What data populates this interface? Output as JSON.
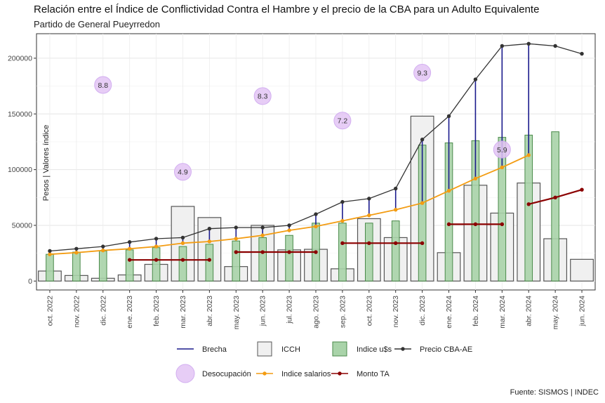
{
  "chart_data": {
    "type": "bar",
    "title": "Relación entre el Índice de Conflictividad Contra el Hambre y el precio de la CBA para un Adulto Equivalente",
    "subtitle": "Partido de General Pueyrredon",
    "ylabel": "Pesos | Valores índice",
    "xlabel": "",
    "caption": "Fuente: SISMOS | INDEC",
    "ylim": [
      -8000,
      222000
    ],
    "yticks": [
      0,
      50000,
      100000,
      150000,
      200000
    ],
    "grid": true,
    "legend_position": "bottom",
    "categories": [
      "oct. 2022",
      "nov. 2022",
      "dic. 2022",
      "ene. 2023",
      "feb. 2023",
      "mar. 2023",
      "abr. 2023",
      "may. 2023",
      "jun. 2023",
      "jul. 2023",
      "ago. 2023",
      "sep. 2023",
      "oct. 2023",
      "nov. 2023",
      "dic. 2023",
      "ene. 2024",
      "feb. 2024",
      "mar. 2024",
      "abr. 2024",
      "may. 2024",
      "jun. 2024"
    ],
    "legend": [
      {
        "label": "Brecha",
        "kind": "line",
        "color": "#1a1a8c"
      },
      {
        "label": "ICCH",
        "kind": "box",
        "color": "#f0f0f0"
      },
      {
        "label": "Indice u$s",
        "kind": "box",
        "color": "#a9d3a9"
      },
      {
        "label": "Precio CBA-AE",
        "kind": "line-point",
        "color": "#333333"
      },
      {
        "label": "Desocupación",
        "kind": "bubble",
        "color": "#e3c4f5"
      },
      {
        "label": "Indice salarios",
        "kind": "line-point",
        "color": "#f39c12"
      },
      {
        "label": "Monto TA",
        "kind": "line-point",
        "color": "#8b0000"
      }
    ],
    "series": [
      {
        "name": "ICCH",
        "type": "bar",
        "color": "#f0f0f0",
        "values": [
          9000,
          5000,
          2500,
          5500,
          15000,
          67000,
          57000,
          13000,
          50000,
          28000,
          28500,
          11000,
          56000,
          39000,
          148000,
          25500,
          86000,
          61000,
          88000,
          38000,
          19500
        ]
      },
      {
        "name": "Indice u$s",
        "type": "bar",
        "color": "#a9d3a9",
        "values": [
          24000,
          26000,
          27000,
          28000,
          30000,
          31000,
          33000,
          36000,
          39000,
          41000,
          52000,
          52000,
          52000,
          54000,
          122000,
          124000,
          126000,
          129000,
          131000,
          134000,
          null
        ]
      },
      {
        "name": "Precio CBA-AE",
        "type": "line",
        "color": "#333333",
        "values": [
          27000,
          29000,
          31000,
          35000,
          38000,
          39000,
          47000,
          48000,
          48000,
          50000,
          60000,
          71000,
          74000,
          83000,
          127000,
          148000,
          181000,
          211000,
          213000,
          211000,
          204000
        ]
      },
      {
        "name": "Indice salarios",
        "type": "line",
        "color": "#f39c12",
        "values": [
          24000,
          25500,
          27500,
          29000,
          31000,
          34000,
          35500,
          38000,
          41000,
          45500,
          49000,
          54000,
          59000,
          64000,
          70000,
          81000,
          92000,
          102000,
          113000,
          null,
          null
        ]
      },
      {
        "name": "Monto TA",
        "type": "segments",
        "color": "#8b0000",
        "segments": [
          {
            "start": 3,
            "end": 6,
            "value": 19000
          },
          {
            "start": 7,
            "end": 10,
            "value": 26000
          },
          {
            "start": 11,
            "end": 14,
            "value": 34000
          },
          {
            "start": 15,
            "end": 17,
            "value": 51000
          },
          {
            "start": 18,
            "end": 20,
            "value": [
              69000,
              75000,
              82000
            ]
          }
        ]
      },
      {
        "name": "Desocupación",
        "type": "bubble",
        "color": "#e3c4f5",
        "points": [
          {
            "index": 2,
            "value": 8.8,
            "y": 176000
          },
          {
            "index": 5,
            "value": 4.9,
            "y": 98000
          },
          {
            "index": 8,
            "value": 8.3,
            "y": 166000
          },
          {
            "index": 11,
            "value": 7.2,
            "y": 144000
          },
          {
            "index": 14,
            "value": 9.3,
            "y": 187000
          },
          {
            "index": 17,
            "value": 5.9,
            "y": 118000
          }
        ]
      }
    ]
  }
}
